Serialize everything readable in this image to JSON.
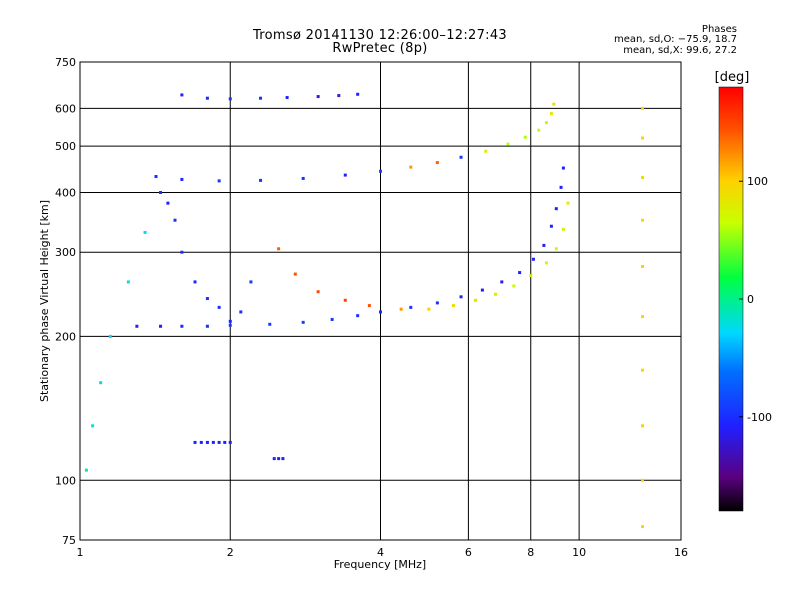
{
  "header": {
    "title": "Tromsø 20141130 12:26:00–12:27:43",
    "subtitle": "RwPretec (8p)",
    "stats_heading": "Phases",
    "stats_o": "mean, sd,O: −75.9, 18.7",
    "stats_x": "mean, sd,X:  99.6, 27.2"
  },
  "chart_data": {
    "type": "scatter",
    "title": "Tromsø 20141130 12:26:00–12:27:43",
    "subtitle": "RwPretec (8p)",
    "xlabel": "Frequency [MHz]",
    "ylabel": "Stationary phase Virtual Height [km]",
    "x_scale": "log",
    "y_scale": "log",
    "xlim": [
      1,
      16
    ],
    "ylim": [
      75,
      750
    ],
    "x_ticks": [
      1,
      2,
      4,
      6,
      8,
      10,
      16
    ],
    "y_ticks": [
      75,
      100,
      200,
      300,
      400,
      500,
      600,
      750
    ],
    "grid": true,
    "colorbar": {
      "label": "[deg]",
      "range": [
        -180,
        180
      ],
      "ticks": [
        100,
        0,
        -100
      ],
      "colormap": "rainbow (black-purple-blue-cyan-green-yellow-red)"
    },
    "series": [
      {
        "x": [
          1.42,
          1.6,
          1.9,
          2.3,
          2.8,
          3.4,
          4.0,
          4.6,
          5.2,
          5.8,
          6.5,
          7.2,
          7.8,
          8.3,
          8.6,
          8.8,
          8.9
        ],
        "y": [
          432,
          426,
          423,
          424,
          428,
          435,
          443,
          452,
          462,
          474,
          488,
          505,
          522,
          540,
          560,
          585,
          612
        ],
        "phase": [
          -100,
          -105,
          -100,
          -95,
          -100,
          -110,
          -90,
          120,
          140,
          -100,
          80,
          60,
          60,
          70,
          75,
          80,
          85
        ]
      },
      {
        "x": [
          1.3,
          1.45,
          1.6,
          1.8,
          2.0,
          2.4,
          2.8,
          3.2,
          3.6,
          4.0,
          4.6,
          5.2,
          5.8,
          6.4,
          7.0,
          7.6,
          8.1,
          8.5,
          8.8,
          9.0,
          9.2,
          9.3
        ],
        "y": [
          210,
          210,
          210,
          210,
          211,
          212,
          214,
          217,
          221,
          225,
          230,
          235,
          242,
          250,
          260,
          272,
          290,
          310,
          340,
          370,
          410,
          450
        ],
        "phase": [
          -110,
          -110,
          -105,
          -100,
          -95,
          -90,
          -90,
          -95,
          -100,
          -105,
          -100,
          -100,
          -110,
          -115,
          -115,
          -110,
          -110,
          -110,
          -110,
          -110,
          -110,
          -110
        ]
      },
      {
        "x": [
          2.5,
          2.7,
          3.0,
          3.4,
          3.8,
          4.4,
          5.0,
          5.6,
          6.2,
          6.8,
          7.4,
          8.0,
          8.6,
          9.0,
          9.3,
          9.5
        ],
        "y": [
          305,
          270,
          248,
          238,
          232,
          228,
          228,
          232,
          238,
          245,
          255,
          268,
          285,
          305,
          335,
          380
        ],
        "phase": [
          140,
          145,
          150,
          150,
          145,
          120,
          100,
          90,
          90,
          80,
          70,
          70,
          70,
          70,
          75,
          80
        ]
      },
      {
        "x": [
          1.6,
          1.8,
          2.0,
          2.3,
          2.6,
          3.0,
          3.3,
          3.6
        ],
        "y": [
          640,
          630,
          628,
          630,
          632,
          635,
          638,
          642
        ],
        "phase": [
          -110,
          -105,
          -100,
          -100,
          -110,
          -115,
          -115,
          -110
        ]
      },
      {
        "x": [
          1.03,
          1.06,
          1.1,
          1.15,
          1.25,
          1.35,
          1.45,
          1.5,
          1.55,
          1.6,
          1.7,
          1.8,
          1.9,
          2.0,
          2.1,
          2.2
        ],
        "y": [
          105,
          130,
          160,
          200,
          260,
          330,
          400,
          380,
          350,
          300,
          260,
          240,
          230,
          215,
          225,
          260
        ],
        "phase": [
          -10,
          -20,
          -25,
          -30,
          -20,
          -30,
          -100,
          -110,
          -100,
          -100,
          -105,
          -100,
          -100,
          -110,
          -100,
          -95
        ]
      },
      {
        "x": [
          1.7,
          1.75,
          1.8,
          1.85,
          1.9,
          1.95,
          2.0,
          2.45,
          2.5,
          2.55
        ],
        "y": [
          120,
          120,
          120,
          120,
          120,
          120,
          120,
          111,
          111,
          111
        ],
        "phase": [
          -110,
          -110,
          -110,
          -110,
          -110,
          -110,
          -110,
          -110,
          -110,
          -110
        ]
      },
      {
        "x": [
          13.4,
          13.4,
          13.4,
          13.4,
          13.4,
          13.4,
          13.4,
          13.4,
          13.4,
          13.4
        ],
        "y": [
          80,
          100,
          130,
          170,
          220,
          280,
          350,
          430,
          520,
          600
        ],
        "phase": [
          90,
          95,
          100,
          95,
          90,
          100,
          95,
          90,
          95,
          100
        ]
      }
    ]
  }
}
